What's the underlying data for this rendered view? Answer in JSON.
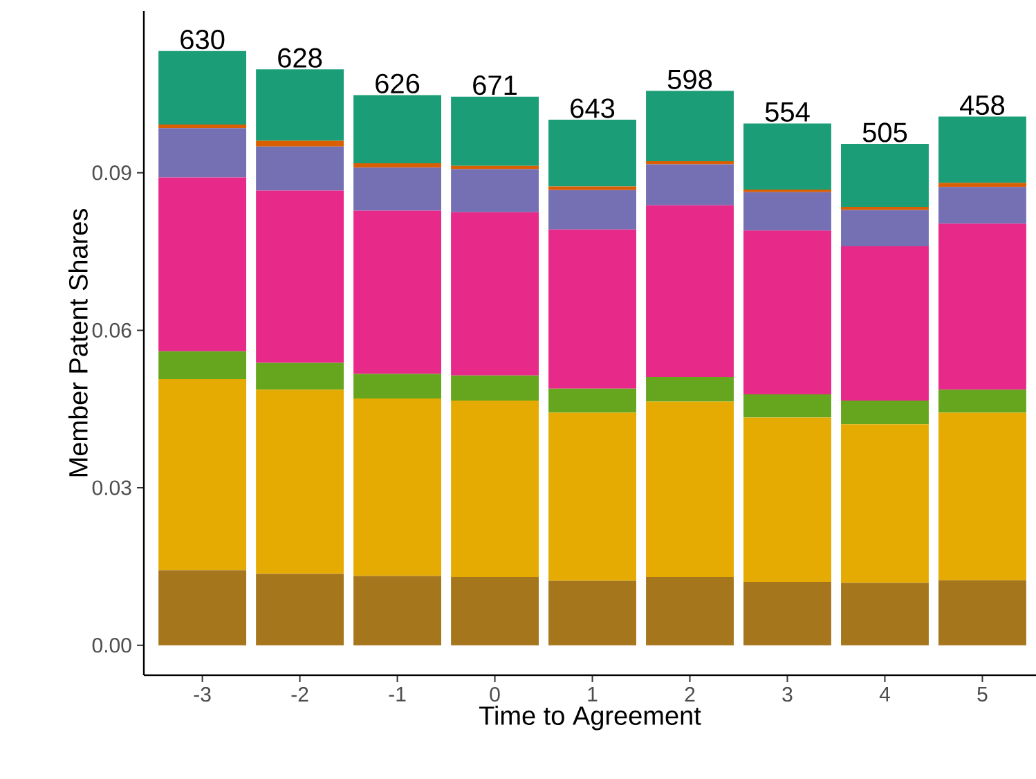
{
  "chart_data": {
    "type": "bar",
    "stacked": true,
    "xlabel": "Time to Agreement",
    "ylabel": "Member Patent Shares",
    "categories": [
      "-3",
      "-2",
      "-1",
      "0",
      "1",
      "2",
      "3",
      "4",
      "5"
    ],
    "series": [
      {
        "color": "#a6761d",
        "values": [
          0.0143,
          0.0136,
          0.0132,
          0.013,
          0.0123,
          0.013,
          0.0121,
          0.0119,
          0.0124
        ]
      },
      {
        "color": "#e6ab02",
        "values": [
          0.0364,
          0.0351,
          0.0338,
          0.0336,
          0.032,
          0.0334,
          0.0313,
          0.0302,
          0.0319
        ]
      },
      {
        "color": "#66a61e",
        "values": [
          0.0053,
          0.0051,
          0.0047,
          0.0048,
          0.0046,
          0.0047,
          0.0044,
          0.0045,
          0.0044
        ]
      },
      {
        "color": "#e7298a",
        "values": [
          0.0331,
          0.0328,
          0.0311,
          0.0311,
          0.0303,
          0.0327,
          0.0312,
          0.0294,
          0.0316
        ]
      },
      {
        "color": "#7570b3",
        "values": [
          0.0094,
          0.0084,
          0.0082,
          0.0082,
          0.0075,
          0.0078,
          0.0073,
          0.0069,
          0.007
        ]
      },
      {
        "color": "#d95f02",
        "values": [
          0.0007,
          0.0011,
          0.0008,
          0.0006,
          0.0007,
          0.0006,
          0.0005,
          0.0006,
          0.0008
        ]
      },
      {
        "color": "#1b9e77",
        "values": [
          0.014,
          0.0136,
          0.013,
          0.0132,
          0.0127,
          0.0134,
          0.0126,
          0.012,
          0.0126
        ]
      }
    ],
    "annotations": [
      {
        "text": "630",
        "x": "-3",
        "y": 0.1132
      },
      {
        "text": "628",
        "x": "-2",
        "y": 0.1097
      },
      {
        "text": "626",
        "x": "-1",
        "y": 0.1048
      },
      {
        "text": "671",
        "x": "0",
        "y": 0.1045
      },
      {
        "text": "643",
        "x": "1",
        "y": 0.1001
      },
      {
        "text": "598",
        "x": "2",
        "y": 0.1056
      },
      {
        "text": "554",
        "x": "3",
        "y": 0.0994
      },
      {
        "text": "505",
        "x": "4",
        "y": 0.0955
      },
      {
        "text": "458",
        "x": "5",
        "y": 0.1007
      }
    ],
    "ylim": [
      -0.0057,
      0.1208
    ],
    "yticks": [
      {
        "value": 0,
        "label": "0.00"
      },
      {
        "value": 0.03,
        "label": "0.03"
      },
      {
        "value": 0.06,
        "label": "0.06"
      },
      {
        "value": 0.09,
        "label": "0.09"
      }
    ]
  }
}
